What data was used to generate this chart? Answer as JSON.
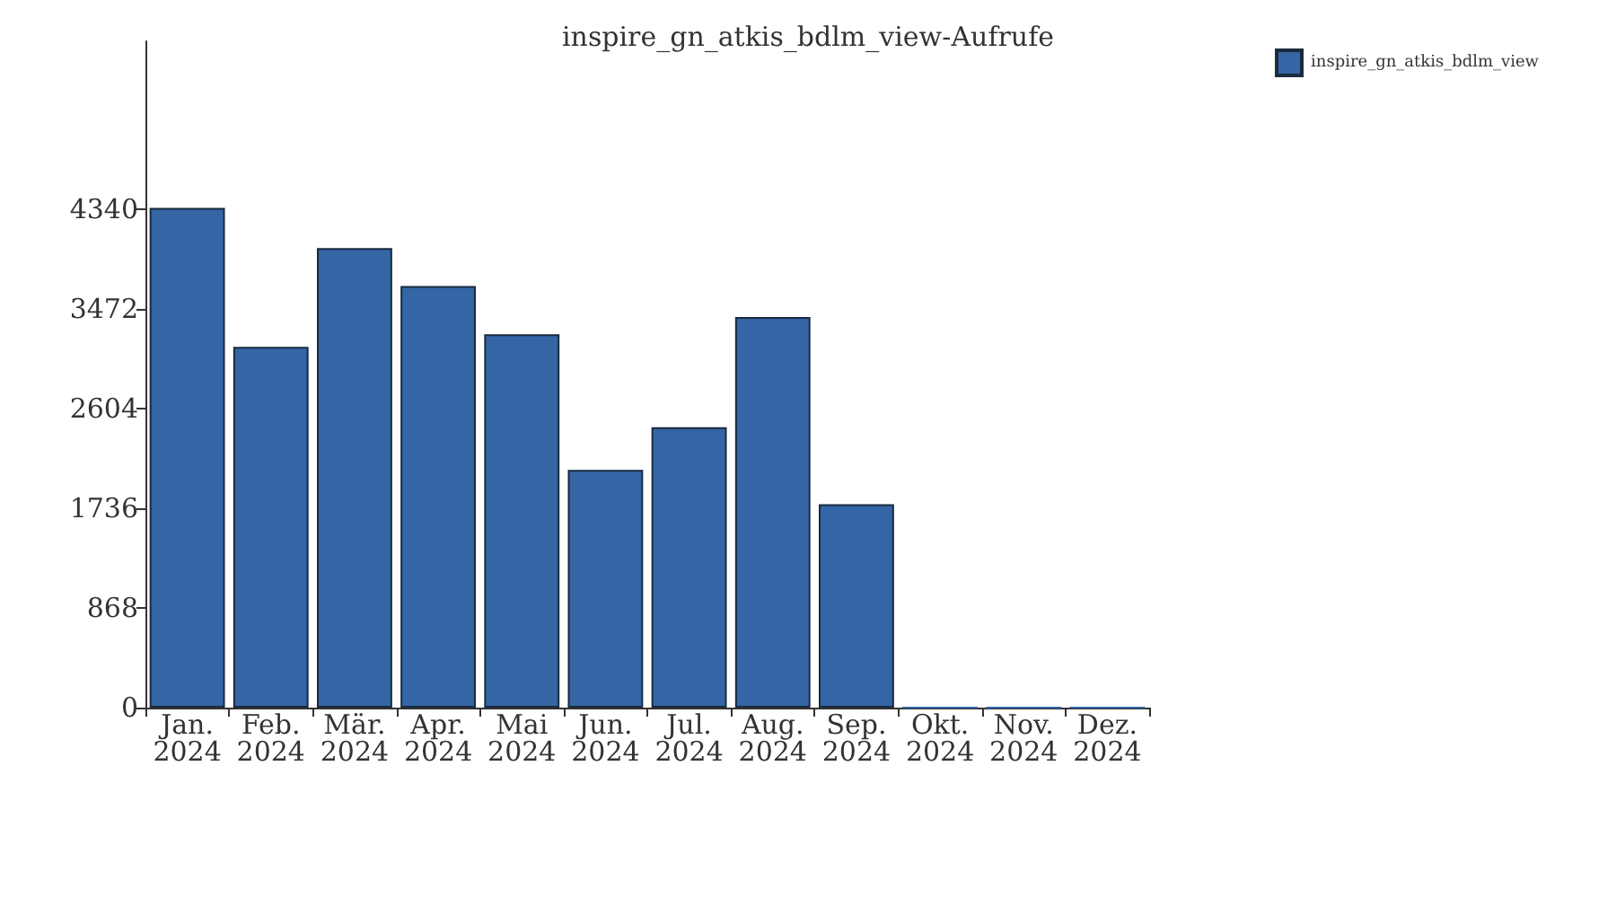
{
  "chart_data": {
    "type": "bar",
    "title": "inspire_gn_atkis_bdlm_view-Aufrufe",
    "categories": [
      "Jan.\n2024",
      "Feb.\n2024",
      "Mär.\n2024",
      "Apr.\n2024",
      "Mai\n2024",
      "Jun.\n2024",
      "Jul.\n2024",
      "Aug.\n2024",
      "Sep.\n2024",
      "Okt.\n2024",
      "Nov.\n2024",
      "Dez.\n2024"
    ],
    "series": [
      {
        "name": "inspire_gn_atkis_bdlm_view",
        "color": "#3465a4",
        "values": [
          4350,
          3140,
          4000,
          3670,
          3250,
          2070,
          2440,
          3400,
          1770,
          0,
          0,
          0
        ]
      }
    ],
    "ylim": [
      0,
      5800
    ],
    "yticks": [
      0,
      868,
      1736,
      2604,
      3472,
      4340
    ],
    "grid": false,
    "legend": "top right"
  }
}
